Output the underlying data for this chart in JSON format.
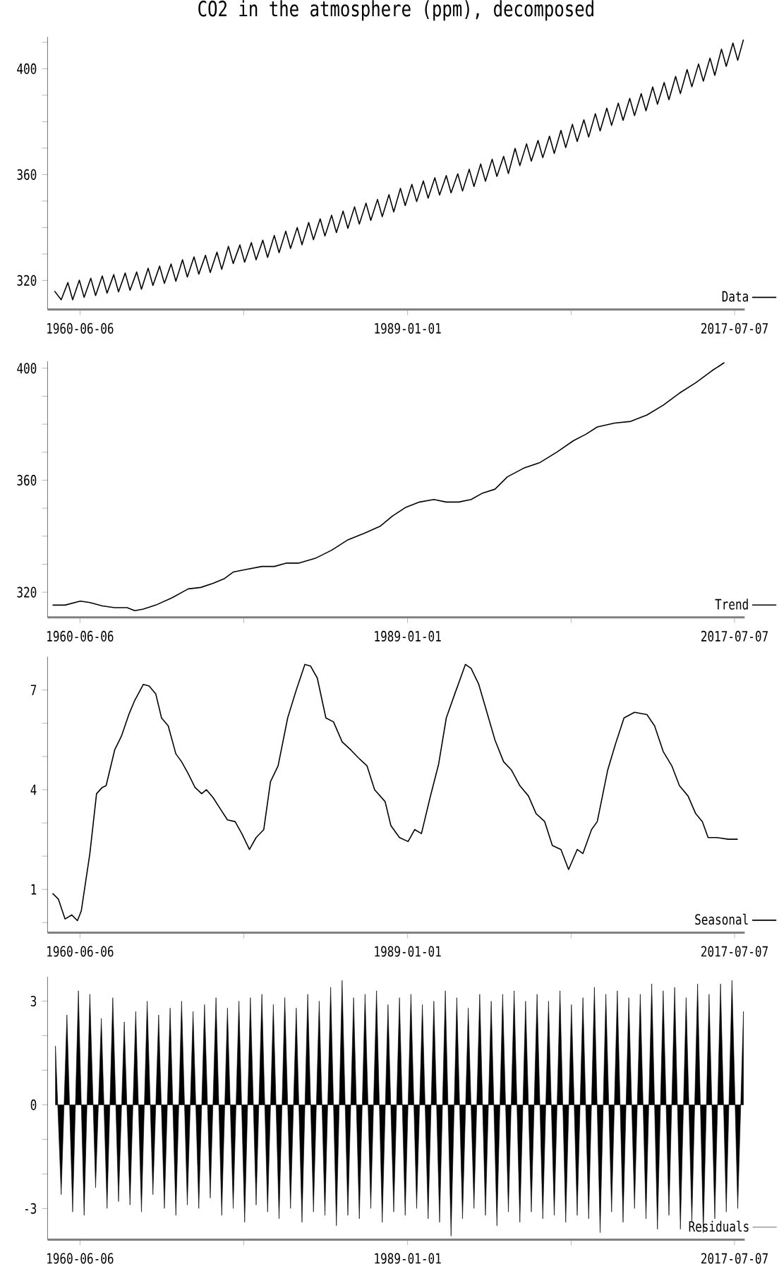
{
  "chart_data": [
    {
      "type": "line",
      "title": "CO2 in the atmosphere (ppm), decomposed",
      "legend": "bottom right",
      "x": [
        "1958-03",
        "1958-10",
        "1959-05",
        "1959-10",
        "1960-05",
        "1960-10",
        "1961-05",
        "1961-10",
        "1962-05",
        "1962-10",
        "1963-05",
        "1963-10",
        "1964-05",
        "1964-10",
        "1965-05",
        "1965-10",
        "1966-05",
        "1966-10",
        "1967-05",
        "1967-10",
        "1968-05",
        "1968-10",
        "1969-05",
        "1969-10",
        "1970-05",
        "1970-10",
        "1971-05",
        "1971-10",
        "1972-05",
        "1972-10",
        "1973-05",
        "1973-10",
        "1974-05",
        "1974-10",
        "1975-05",
        "1975-10",
        "1976-05",
        "1976-10",
        "1977-05",
        "1977-10",
        "1978-05",
        "1978-10",
        "1979-05",
        "1979-10",
        "1980-05",
        "1980-10",
        "1981-05",
        "1981-10",
        "1982-05",
        "1982-10",
        "1983-05",
        "1983-10",
        "1984-05",
        "1984-10",
        "1985-05",
        "1985-10",
        "1986-05",
        "1986-10",
        "1987-05",
        "1987-10",
        "1988-05",
        "1988-10",
        "1989-05",
        "1989-10",
        "1990-05",
        "1990-10",
        "1991-05",
        "1991-10",
        "1992-05",
        "1992-10",
        "1993-05",
        "1993-10",
        "1994-05",
        "1994-10",
        "1995-05",
        "1995-10",
        "1996-05",
        "1996-10",
        "1997-05",
        "1997-10",
        "1998-05",
        "1998-10",
        "1999-05",
        "1999-10",
        "2000-05",
        "2000-10",
        "2001-05",
        "2001-10",
        "2002-05",
        "2002-10",
        "2003-05",
        "2003-10",
        "2004-05",
        "2004-10",
        "2005-05",
        "2005-10",
        "2006-05",
        "2006-10",
        "2007-05",
        "2007-10",
        "2008-05",
        "2008-10",
        "2009-05",
        "2009-10",
        "2010-05",
        "2010-10",
        "2011-05",
        "2011-10",
        "2012-05",
        "2012-10",
        "2013-05",
        "2013-10",
        "2014-05",
        "2014-10",
        "2015-05",
        "2015-10",
        "2016-05",
        "2016-10",
        "2017-05",
        "2017-10",
        "2018-04"
      ],
      "series": [
        {
          "name": "Data",
          "color": "#000000",
          "values": [
            316.0,
            312.7,
            319.2,
            312.7,
            320.1,
            313.6,
            320.8,
            314.3,
            321.7,
            315.2,
            322.2,
            315.7,
            322.8,
            316.3,
            323.2,
            316.7,
            324.6,
            318.1,
            325.4,
            318.9,
            326.2,
            319.7,
            327.8,
            321.3,
            328.9,
            322.4,
            329.5,
            323.0,
            330.7,
            324.2,
            332.9,
            326.4,
            333.4,
            326.9,
            334.3,
            327.8,
            335.2,
            328.7,
            337.0,
            330.5,
            338.6,
            332.1,
            340.0,
            333.5,
            341.9,
            335.4,
            343.3,
            336.8,
            344.6,
            338.1,
            346.2,
            339.7,
            347.8,
            341.3,
            349.2,
            342.7,
            350.6,
            344.1,
            352.4,
            345.9,
            354.8,
            348.3,
            356.3,
            349.8,
            357.6,
            351.1,
            358.8,
            352.3,
            359.6,
            353.1,
            360.3,
            353.8,
            362.0,
            355.5,
            364.0,
            357.5,
            365.8,
            359.3,
            366.9,
            360.4,
            369.9,
            363.4,
            371.6,
            365.1,
            372.9,
            366.4,
            374.5,
            368.0,
            376.7,
            370.2,
            379.0,
            372.5,
            380.7,
            374.2,
            383.0,
            376.5,
            385.1,
            378.6,
            387.0,
            380.5,
            388.8,
            382.3,
            390.6,
            384.1,
            393.1,
            386.6,
            394.8,
            388.3,
            397.1,
            390.6,
            399.7,
            393.2,
            401.8,
            395.3,
            404.0,
            397.5,
            407.4,
            400.9,
            409.7,
            403.2,
            411.0
          ]
        }
      ],
      "xlim": [
        "1957-08-08",
        "2018-05-26"
      ],
      "xticks": [
        "1960-06-06",
        {
          "value": "1974-09-18",
          "label": null
        },
        "1989-01-01",
        {
          "value": "2003-04-05",
          "label": null
        },
        "2017-07-07"
      ],
      "ylim": [
        309,
        412
      ],
      "yticks": [
        320,
        {
          "value": 330,
          "label": null
        },
        {
          "value": 340,
          "label": null
        },
        {
          "value": 350,
          "label": null
        },
        360,
        {
          "value": 370,
          "label": null
        },
        {
          "value": 380,
          "label": null
        },
        {
          "value": 390,
          "label": null
        },
        400,
        {
          "value": 410,
          "label": null
        }
      ]
    },
    {
      "type": "line",
      "legend": "bottom right",
      "x": [
        "1958-01",
        "1959-02",
        "1960-06",
        "1961-04",
        "1962-05",
        "1963-06",
        "1964-07",
        "1965-03",
        "1965-12",
        "1967-01",
        "1968-06",
        "1969-11",
        "1970-12",
        "1972-01",
        "1973-01",
        "1973-10",
        "1974-11",
        "1976-04",
        "1977-05",
        "1978-06",
        "1979-07",
        "1980-12",
        "1982-05",
        "1983-10",
        "1985-03",
        "1986-08",
        "1987-09",
        "1988-10",
        "1990-01",
        "1991-04",
        "1992-05",
        "1993-06",
        "1994-07",
        "1995-07",
        "1996-08",
        "1997-09",
        "1999-02",
        "2000-07",
        "2002-01",
        "2003-06",
        "2004-07",
        "2005-07",
        "2007-01",
        "2008-06",
        "2009-11",
        "2011-04",
        "2012-09",
        "2014-02",
        "2015-07",
        "2016-08"
      ],
      "series": [
        {
          "name": "Trend",
          "color": "#000000",
          "values": [
            315.4,
            315.4,
            316.8,
            316.3,
            315.1,
            314.5,
            314.5,
            313.4,
            314.0,
            315.4,
            318.0,
            321.2,
            321.7,
            323.2,
            324.9,
            327.2,
            328.1,
            329.2,
            329.2,
            330.4,
            330.4,
            332.1,
            335.0,
            338.7,
            341.0,
            343.6,
            347.3,
            350.2,
            352.2,
            353.1,
            352.2,
            352.2,
            353.1,
            355.4,
            356.8,
            361.2,
            364.3,
            366.3,
            370.1,
            374.1,
            376.4,
            379.0,
            380.4,
            381.0,
            383.3,
            386.8,
            391.1,
            394.8,
            399.1,
            402.0
          ]
        }
      ],
      "xlim": [
        "1957-08-08",
        "2018-05-26"
      ],
      "xticks": [
        "1960-06-06",
        {
          "value": "1974-09-18",
          "label": null
        },
        "1989-01-01",
        {
          "value": "2003-04-05",
          "label": null
        },
        "2017-07-07"
      ],
      "ylim": [
        311,
        402.5
      ],
      "yticks": [
        320,
        {
          "value": 330,
          "label": null
        },
        {
          "value": 340,
          "label": null
        },
        {
          "value": 350,
          "label": null
        },
        360,
        {
          "value": 370,
          "label": null
        },
        {
          "value": 380,
          "label": null
        },
        {
          "value": 390,
          "label": null
        },
        400
      ]
    },
    {
      "type": "line",
      "legend": "bottom right",
      "x": [
        "1958-01",
        "1958-07",
        "1959-02",
        "1959-09",
        "1960-03",
        "1960-07",
        "1961-04",
        "1961-11",
        "1962-05",
        "1962-09",
        "1963-06",
        "1964-01",
        "1964-09",
        "1965-03",
        "1965-12",
        "1966-06",
        "1967-01",
        "1967-07",
        "1968-02",
        "1968-10",
        "1969-04",
        "1969-11",
        "1970-06",
        "1971-01",
        "1971-06",
        "1972-01",
        "1972-09",
        "1973-04",
        "1973-12",
        "1974-07",
        "1975-03",
        "1975-10",
        "1976-06",
        "1977-01",
        "1977-09",
        "1978-07",
        "1979-04",
        "1980-01",
        "1980-07",
        "1981-02",
        "1981-11",
        "1982-07",
        "1983-04",
        "1984-01",
        "1984-09",
        "1985-06",
        "1986-02",
        "1987-01",
        "1987-07",
        "1988-04",
        "1989-01",
        "1989-08",
        "1990-03",
        "1990-12",
        "1991-09",
        "1992-05",
        "1993-01",
        "1994-01",
        "1994-07",
        "1995-03",
        "1995-12",
        "1996-08",
        "1997-05",
        "1998-01",
        "1998-10",
        "1999-07",
        "2000-03",
        "2000-12",
        "2001-08",
        "2002-05",
        "2003-01",
        "2003-10",
        "2004-04",
        "2005-01",
        "2005-07",
        "2006-06",
        "2007-02",
        "2007-11",
        "2008-10",
        "2009-11",
        "2010-07",
        "2011-04",
        "2012-01",
        "2012-09",
        "2013-06",
        "2014-02",
        "2014-09",
        "2015-03",
        "2015-12",
        "2016-12",
        "2017-10"
      ],
      "series": [
        {
          "name": "Seasonal",
          "color": "#000000",
          "values": [
            0.88,
            0.71,
            0.11,
            0.23,
            0.06,
            0.35,
            2.08,
            3.88,
            4.07,
            4.12,
            5.2,
            5.61,
            6.28,
            6.69,
            7.17,
            7.12,
            6.88,
            6.16,
            5.92,
            5.08,
            4.84,
            4.48,
            4.07,
            3.88,
            4.0,
            3.76,
            3.4,
            3.09,
            3.04,
            2.68,
            2.2,
            2.56,
            2.8,
            4.24,
            4.72,
            6.16,
            7.0,
            7.77,
            7.72,
            7.36,
            6.16,
            6.04,
            5.44,
            5.2,
            4.96,
            4.72,
            4.0,
            3.64,
            2.92,
            2.56,
            2.44,
            2.8,
            2.68,
            3.76,
            4.77,
            6.16,
            6.81,
            7.77,
            7.65,
            7.17,
            6.28,
            5.49,
            4.84,
            4.6,
            4.12,
            3.81,
            3.28,
            3.04,
            2.32,
            2.2,
            1.6,
            2.2,
            2.08,
            2.8,
            3.04,
            4.6,
            5.37,
            6.16,
            6.33,
            6.26,
            5.92,
            5.15,
            4.72,
            4.12,
            3.81,
            3.28,
            3.04,
            2.56,
            2.56,
            2.51,
            2.51
          ]
        }
      ],
      "xlim": [
        "1957-08-08",
        "2018-05-26"
      ],
      "xticks": [
        "1960-06-06",
        {
          "value": "1974-09-18",
          "label": null
        },
        "1989-01-01",
        {
          "value": "2003-04-05",
          "label": null
        },
        "2017-07-07"
      ],
      "ylim": [
        -0.3,
        8
      ],
      "yticks": [
        {
          "value": 0,
          "label": null
        },
        1,
        {
          "value": 2,
          "label": null
        },
        {
          "value": 3,
          "label": null
        },
        4,
        {
          "value": 5,
          "label": null
        },
        {
          "value": 6,
          "label": null
        },
        7
      ]
    },
    {
      "type": "area",
      "legend": "bottom right",
      "x": [
        "1958-04",
        "1958-10",
        "1959-04",
        "1959-10",
        "1960-04",
        "1960-10",
        "1961-04",
        "1961-10",
        "1962-04",
        "1962-10",
        "1963-04",
        "1963-10",
        "1964-04",
        "1964-10",
        "1965-04",
        "1965-10",
        "1966-04",
        "1966-10",
        "1967-04",
        "1967-10",
        "1968-04",
        "1968-10",
        "1969-04",
        "1969-10",
        "1970-04",
        "1970-10",
        "1971-04",
        "1971-10",
        "1972-04",
        "1972-10",
        "1973-04",
        "1973-10",
        "1974-04",
        "1974-10",
        "1975-04",
        "1975-10",
        "1976-04",
        "1976-10",
        "1977-04",
        "1977-10",
        "1978-04",
        "1978-10",
        "1979-04",
        "1979-10",
        "1980-04",
        "1980-10",
        "1981-04",
        "1981-10",
        "1982-04",
        "1982-10",
        "1983-04",
        "1983-10",
        "1984-04",
        "1984-10",
        "1985-04",
        "1985-10",
        "1986-04",
        "1986-10",
        "1987-04",
        "1987-10",
        "1988-04",
        "1988-10",
        "1989-04",
        "1989-10",
        "1990-04",
        "1990-10",
        "1991-04",
        "1991-10",
        "1992-04",
        "1992-10",
        "1993-04",
        "1993-10",
        "1994-04",
        "1994-10",
        "1995-04",
        "1995-10",
        "1996-04",
        "1996-10",
        "1997-04",
        "1997-10",
        "1998-04",
        "1998-10",
        "1999-04",
        "1999-10",
        "2000-04",
        "2000-10",
        "2001-04",
        "2001-10",
        "2002-04",
        "2002-10",
        "2003-04",
        "2003-10",
        "2004-04",
        "2004-10",
        "2005-04",
        "2005-10",
        "2006-04",
        "2006-10",
        "2007-04",
        "2007-10",
        "2008-04",
        "2008-10",
        "2009-04",
        "2009-10",
        "2010-04",
        "2010-10",
        "2011-04",
        "2011-10",
        "2012-04",
        "2012-10",
        "2013-04",
        "2013-10",
        "2014-04",
        "2014-10",
        "2015-04",
        "2015-10",
        "2016-04",
        "2016-10",
        "2017-04",
        "2017-10",
        "2018-04"
      ],
      "series": [
        {
          "name": "Residuals",
          "color": "#000000",
          "values": [
            1.7,
            -2.6,
            2.6,
            -3.1,
            3.3,
            -3.2,
            3.2,
            -2.4,
            2.5,
            -3.0,
            3.1,
            -2.8,
            2.4,
            -2.9,
            2.7,
            -3.1,
            3.0,
            -2.6,
            2.6,
            -3.0,
            2.8,
            -3.2,
            3.0,
            -2.9,
            2.7,
            -3.0,
            2.9,
            -2.7,
            3.1,
            -3.2,
            2.8,
            -3.0,
            3.0,
            -3.4,
            3.1,
            -2.9,
            3.2,
            -3.1,
            2.9,
            -3.3,
            3.1,
            -3.0,
            2.8,
            -3.4,
            3.2,
            -3.1,
            3.0,
            -3.2,
            3.4,
            -3.5,
            3.6,
            -3.2,
            3.1,
            -3.3,
            3.2,
            -3.0,
            3.3,
            -3.4,
            2.9,
            -3.1,
            3.1,
            -3.2,
            3.2,
            -3.0,
            2.9,
            -3.3,
            3.0,
            -3.4,
            3.3,
            -3.8,
            3.1,
            -3.3,
            2.8,
            -3.0,
            3.2,
            -3.2,
            3.0,
            -3.5,
            3.2,
            -3.1,
            3.3,
            -3.4,
            3.0,
            -3.1,
            3.2,
            -3.3,
            3.0,
            -3.2,
            3.3,
            -3.4,
            2.9,
            -3.2,
            3.1,
            -3.3,
            3.4,
            -3.7,
            3.2,
            -3.1,
            3.3,
            -3.4,
            3.1,
            -3.0,
            3.2,
            -3.3,
            3.5,
            -3.6,
            3.3,
            -3.2,
            3.4,
            -3.6,
            3.1,
            -3.4,
            3.5,
            -3.7,
            3.2,
            -3.3,
            3.5,
            -3.1,
            3.6,
            -3.0,
            2.7
          ]
        }
      ],
      "xlim": [
        "1957-08-08",
        "2018-05-26"
      ],
      "xticks": [
        "1960-06-06",
        {
          "value": "1974-09-18",
          "label": null
        },
        "1989-01-01",
        {
          "value": "2003-04-05",
          "label": null
        },
        "2017-07-07"
      ],
      "ylim": [
        -3.9,
        3.7
      ],
      "yticks": [
        -3,
        {
          "value": -2,
          "label": null
        },
        {
          "value": -1,
          "label": null
        },
        0,
        {
          "value": 1,
          "label": null
        },
        {
          "value": 2,
          "label": null
        },
        3
      ]
    }
  ]
}
